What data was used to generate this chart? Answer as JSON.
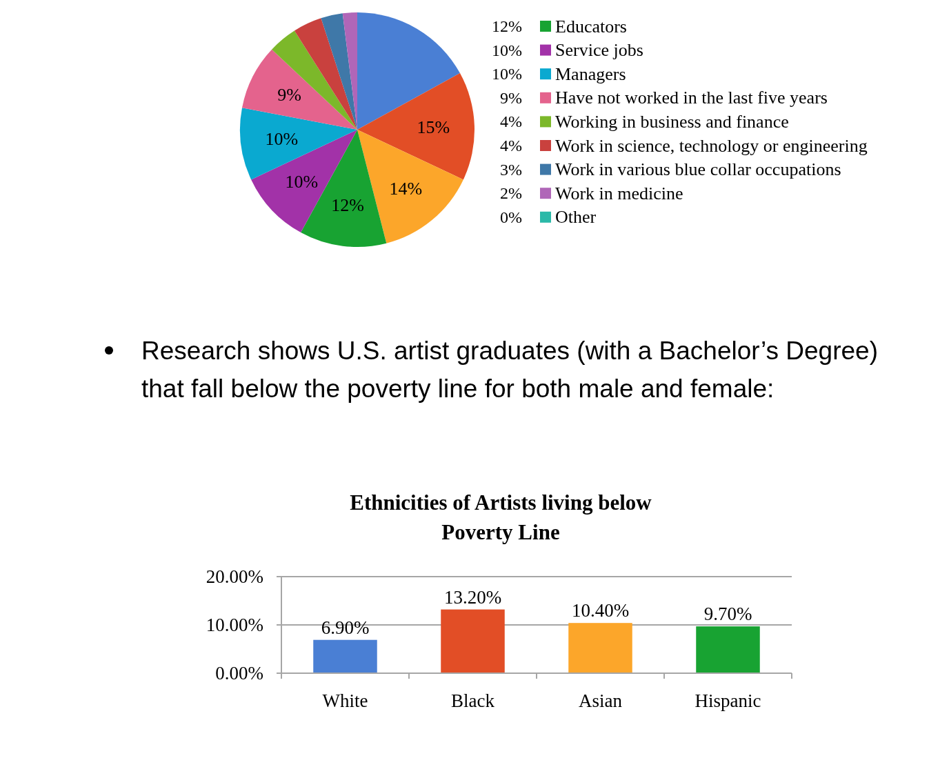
{
  "chart_data": [
    {
      "type": "pie",
      "categories": [
        null,
        null,
        null,
        "Educators",
        "Service jobs",
        "Managers",
        "Have not worked in the last five years",
        "Working in business and finance",
        "Work in science, technology or engineering",
        "Work in various blue collar occupations",
        "Work in medicine",
        "Other"
      ],
      "values": [
        17,
        15,
        14,
        12,
        10,
        10,
        9,
        4,
        4,
        3,
        2,
        0
      ],
      "colors": [
        "#4a7fd4",
        "#e24e26",
        "#fca62a",
        "#18a332",
        "#a232a8",
        "#0aa9d0",
        "#e4638d",
        "#7cb82a",
        "#c9413e",
        "#3f78a8",
        "#b066b8",
        "#2bb9a8"
      ],
      "value_labels": [
        null,
        "15%",
        "14%",
        "12%",
        "10%",
        "10%",
        "9%",
        "4%",
        "4%",
        "3%",
        "2%",
        "0%"
      ],
      "legend": "right"
    },
    {
      "type": "bar",
      "title": "Ethnicities of Artists living below Poverty Line",
      "annotations": [
        "Research shows U.S. artist graduates (with a Bachelor’s Degree) that fall below the poverty line for both male and female:"
      ],
      "categories": [
        "White",
        "Black",
        "Asian",
        "Hispanic"
      ],
      "values": [
        6.9,
        13.2,
        10.4,
        9.7
      ],
      "colors": [
        "#4a7fd4",
        "#e24e26",
        "#fca62a",
        "#18a332"
      ],
      "value_labels": [
        "6.90%",
        "13.20%",
        "10.40%",
        "9.70%"
      ],
      "ylim": [
        0,
        20
      ],
      "yticks": [
        {
          "value": 0,
          "label": "0.00%"
        },
        {
          "value": 10,
          "label": "10.00%"
        },
        {
          "value": 20,
          "label": "20.00%"
        }
      ],
      "grid": "y"
    }
  ]
}
